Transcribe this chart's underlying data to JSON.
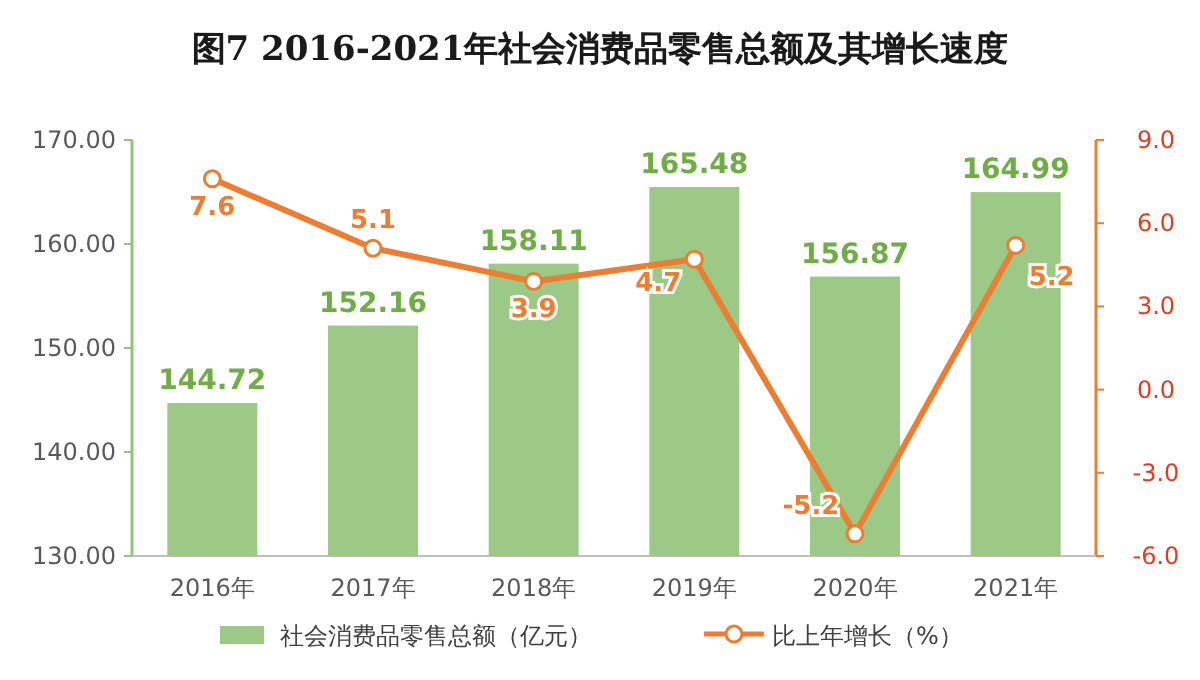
{
  "chart_data": {
    "type": "bar",
    "title": "图7 2016-2021年社会消费品零售总额及其增长速度",
    "categories": [
      "2016年",
      "2017年",
      "2018年",
      "2019年",
      "2020年",
      "2021年"
    ],
    "series": [
      {
        "name": "社会消费品零售总额（亿元）",
        "color": "#9cc986",
        "values": [
          144.72,
          152.16,
          158.11,
          165.48,
          156.87,
          164.99
        ]
      },
      {
        "name": "比上年增长（%）",
        "type": "line",
        "axis": "y2",
        "color": "#ed7d31",
        "values": [
          7.6,
          5.1,
          3.9,
          4.7,
          -5.2,
          5.2
        ]
      }
    ],
    "ylim": [
      130,
      170
    ],
    "yticks": [
      {
        "value": 130,
        "label": "130.00"
      },
      {
        "value": 140,
        "label": "140.00"
      },
      {
        "value": 150,
        "label": "150.00"
      },
      {
        "value": 160,
        "label": "160.00"
      },
      {
        "value": 170,
        "label": "170.00"
      }
    ],
    "y2lim": [
      -6,
      9
    ],
    "y2ticks": [
      {
        "value": -6,
        "label": "-6.0"
      },
      {
        "value": -3,
        "label": "-3.0"
      },
      {
        "value": 0,
        "label": "0.0"
      },
      {
        "value": 3,
        "label": "3.0"
      },
      {
        "value": 6,
        "label": "6.0"
      },
      {
        "value": 9,
        "label": "9.0"
      }
    ],
    "marker": "circle",
    "data_labels": true,
    "legend": "bottom",
    "grid": false
  }
}
